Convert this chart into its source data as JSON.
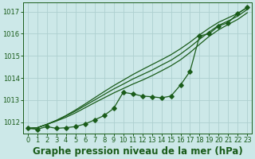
{
  "xlabel": "Graphe pression niveau de la mer (hPa)",
  "x": [
    0,
    1,
    2,
    3,
    4,
    5,
    6,
    7,
    8,
    9,
    10,
    11,
    12,
    13,
    14,
    15,
    16,
    17,
    18,
    19,
    20,
    21,
    22,
    23
  ],
  "smooth1": [
    1011.72,
    1011.75,
    1011.9,
    1012.08,
    1012.3,
    1012.55,
    1012.82,
    1013.1,
    1013.38,
    1013.65,
    1013.9,
    1014.15,
    1014.38,
    1014.6,
    1014.82,
    1015.05,
    1015.32,
    1015.62,
    1015.95,
    1016.25,
    1016.52,
    1016.72,
    1016.92,
    1017.18
  ],
  "smooth2": [
    1011.72,
    1011.75,
    1011.9,
    1012.08,
    1012.28,
    1012.5,
    1012.75,
    1013.0,
    1013.25,
    1013.5,
    1013.72,
    1013.95,
    1014.15,
    1014.35,
    1014.58,
    1014.8,
    1015.08,
    1015.4,
    1015.75,
    1016.08,
    1016.38,
    1016.58,
    1016.8,
    1017.1
  ],
  "smooth3": [
    1011.72,
    1011.75,
    1011.9,
    1012.05,
    1012.22,
    1012.42,
    1012.65,
    1012.88,
    1013.1,
    1013.32,
    1013.52,
    1013.72,
    1013.9,
    1014.1,
    1014.32,
    1014.55,
    1014.82,
    1015.15,
    1015.52,
    1015.88,
    1016.18,
    1016.42,
    1016.65,
    1016.95
  ],
  "marked_x": [
    0,
    1,
    2,
    3,
    4,
    5,
    6,
    7,
    8,
    9,
    10,
    11,
    12,
    13,
    14,
    15,
    16,
    17,
    18,
    19,
    20,
    21,
    22,
    23
  ],
  "marked_y": [
    1011.72,
    1011.68,
    1011.8,
    1011.72,
    1011.75,
    1011.8,
    1011.92,
    1012.1,
    1012.3,
    1012.62,
    1013.35,
    1013.28,
    1013.18,
    1013.15,
    1013.1,
    1013.18,
    1013.68,
    1014.3,
    1015.9,
    1016.0,
    1016.35,
    1016.5,
    1016.92,
    1017.2
  ],
  "bg_color": "#cce8e8",
  "grid_color": "#aed0d0",
  "line_color": "#1a5c1a",
  "ylim": [
    1011.5,
    1017.4
  ],
  "yticks": [
    1012,
    1013,
    1014,
    1015,
    1016,
    1017
  ],
  "xticks": [
    0,
    1,
    2,
    3,
    4,
    5,
    6,
    7,
    8,
    9,
    10,
    11,
    12,
    13,
    14,
    15,
    16,
    17,
    18,
    19,
    20,
    21,
    22,
    23
  ],
  "markersize": 2.8,
  "linewidth": 0.9,
  "xlabel_fontsize": 8.5,
  "tick_fontsize": 6.0
}
